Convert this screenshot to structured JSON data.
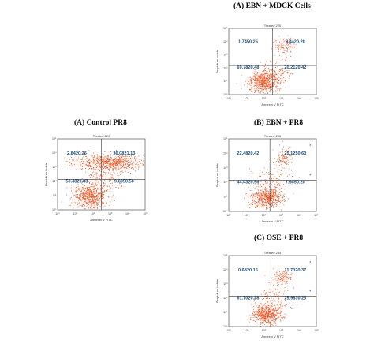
{
  "panels": [
    {
      "id": "A1",
      "title": "(A)  EBN + MDCK Cells",
      "plot_title": "Treated 220",
      "xlabel": "Annexin V FITC",
      "ylabel": "Propidium Iodide",
      "quadrants": {
        "ul": "1.7450.26",
        "ur": "8.4420.28",
        "ll": "69.7820.48",
        "lr": "20.2120.42"
      },
      "star": false
    },
    {
      "id": "A2",
      "title": "(A)  Control PR8",
      "plot_title": "Treated 220",
      "xlabel": "Annexin V FITC",
      "ylabel": "Propidium Iodide",
      "quadrants": {
        "ul": "2.8420.26",
        "ur": "36.0821.13",
        "ll": "50.4820.88",
        "lr": "9.6050.50"
      },
      "star": false
    },
    {
      "id": "B",
      "title": "(B)  EBN + PR8",
      "plot_title": "Treated 206",
      "xlabel": "Annexin V FITC",
      "ylabel": "Propidium Iodide",
      "quadrants": {
        "ul": "22.4820.42",
        "ur": "25.1250.60",
        "ll": "44.4320.56",
        "lr": "7.9450.20"
      },
      "star": true
    },
    {
      "id": "C",
      "title": "(C)  OSE + PR8",
      "plot_title": "Treated 234",
      "xlabel": "Annexin V FITC",
      "ylabel": "Propidium Iodide",
      "quadrants": {
        "ul": "0.6820.15",
        "ur": "11.7020.37",
        "ll": "61.7020.28",
        "lr": "25.9830.23"
      },
      "star": true
    }
  ],
  "chart_data": [
    {
      "type": "scatter",
      "title": "(A)  EBN + MDCK Cells",
      "xlabel": "Annexin V FITC",
      "ylabel": "Propidium Iodide",
      "x_scale": "log",
      "y_scale": "log",
      "xlim": [
        1,
        100000
      ],
      "ylim": [
        1,
        100000
      ],
      "quadrant_percent": {
        "upper_left": "1.7450.26",
        "upper_right": "8.4420.28",
        "lower_left": "69.7820.48",
        "lower_right": "20.2120.42"
      }
    },
    {
      "type": "scatter",
      "title": "(A)  Control PR8",
      "xlabel": "Annexin V FITC",
      "ylabel": "Propidium Iodide",
      "x_scale": "log",
      "y_scale": "log",
      "xlim": [
        1,
        100000
      ],
      "ylim": [
        1,
        100000
      ],
      "quadrant_percent": {
        "upper_left": "2.8420.26",
        "upper_right": "36.0821.13",
        "lower_left": "50.4820.88",
        "lower_right": "9.6050.50"
      }
    },
    {
      "type": "scatter",
      "title": "(B)  EBN + PR8",
      "xlabel": "Annexin V FITC",
      "ylabel": "Propidium Iodide",
      "x_scale": "log",
      "y_scale": "log",
      "xlim": [
        1,
        100000
      ],
      "ylim": [
        1,
        100000
      ],
      "quadrant_percent": {
        "upper_left": "22.4820.42",
        "upper_right": "25.1250.60",
        "lower_left": "44.4320.56",
        "lower_right": "7.9450.20"
      }
    },
    {
      "type": "scatter",
      "title": "(C)  OSE + PR8",
      "xlabel": "Annexin V FITC",
      "ylabel": "Propidium Iodide",
      "x_scale": "log",
      "y_scale": "log",
      "xlim": [
        1,
        100000
      ],
      "ylim": [
        1,
        100000
      ],
      "quadrant_percent": {
        "upper_left": "0.6820.15",
        "upper_right": "11.7020.37",
        "lower_left": "61.7020.28",
        "lower_right": "25.9830.23"
      }
    }
  ],
  "colors": {
    "dots": "#f05a2a",
    "quadrant_text": "#1f4e79",
    "star": "#1f4e79",
    "axis": "#555555"
  }
}
